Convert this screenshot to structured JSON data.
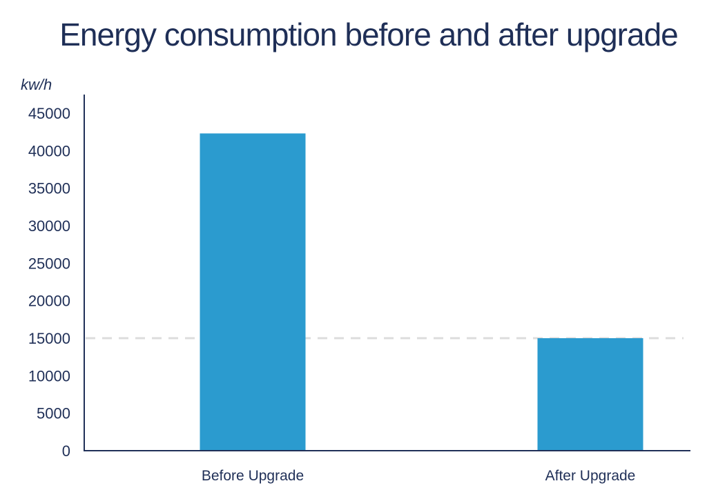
{
  "chart_data": {
    "type": "bar",
    "title": "Energy consumption before and after upgrade",
    "unit_label": "kw/h",
    "categories": [
      "Before Upgrade",
      "After Upgrade"
    ],
    "values": [
      42300,
      15000
    ],
    "ylim": [
      0,
      45000
    ],
    "yticks": [
      0,
      5000,
      10000,
      15000,
      20000,
      25000,
      30000,
      35000,
      40000,
      45000
    ],
    "reference_line": 15000,
    "grid": false,
    "bar_color": "#2b9bcf",
    "axis_color": "#1f2f57",
    "reference_line_color": "#dcdcdc"
  }
}
